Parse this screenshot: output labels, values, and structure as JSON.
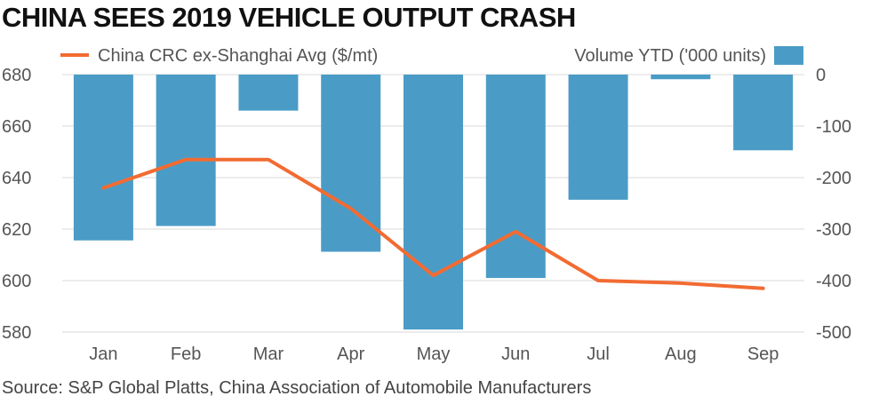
{
  "title": "CHINA SEES 2019 VEHICLE OUTPUT CRASH",
  "source": "Source: S&P Global Platts, China Association of Automobile Manufacturers",
  "colors": {
    "line": "#f26b32",
    "bar": "#4a9cc6",
    "grid": "#d9d9d9"
  },
  "chart_data": {
    "type": "bar+line",
    "categories": [
      "Jan",
      "Feb",
      "Mar",
      "Apr",
      "May",
      "Jun",
      "Jul",
      "Aug",
      "Sep"
    ],
    "series": [
      {
        "name": "Volume YTD ('000 units)",
        "type": "bar",
        "axis": "right",
        "values": [
          -322,
          -294,
          -70,
          -344,
          -495,
          -395,
          -243,
          -9,
          -147
        ]
      },
      {
        "name": "China CRC ex-Shanghai Avg ($/mt)",
        "type": "line",
        "axis": "left",
        "values": [
          636,
          647,
          647,
          628,
          602,
          619,
          600,
          599,
          597
        ]
      }
    ],
    "legend": {
      "line_label": "China CRC ex-Shanghai Avg ($/mt)",
      "bar_label": "Volume YTD ('000 units)"
    },
    "left_axis": {
      "ylim": [
        580,
        680
      ],
      "ticks": [
        "680",
        "660",
        "640",
        "620",
        "600",
        "580"
      ]
    },
    "right_axis": {
      "ylim": [
        -500,
        0
      ],
      "ticks": [
        "0",
        "-100",
        "-200",
        "-300",
        "-400",
        "-500"
      ]
    },
    "grid": true
  }
}
